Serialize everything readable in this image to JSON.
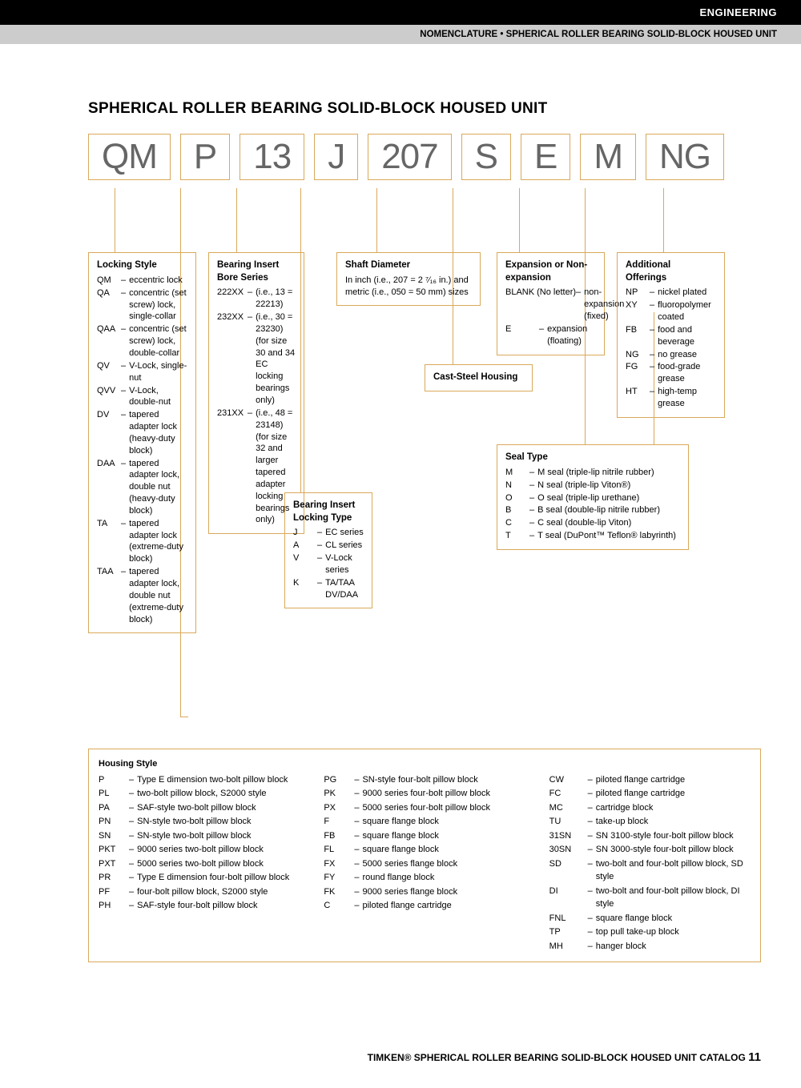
{
  "header": {
    "black_bar": "ENGINEERING",
    "gray_bar": "NOMENCLATURE • SPHERICAL ROLLER BEARING SOLID-BLOCK HOUSED UNIT"
  },
  "title": "SPHERICAL ROLLER BEARING SOLID-BLOCK HOUSED UNIT",
  "code_boxes": [
    "QM",
    "P",
    "13",
    "J",
    "207",
    "S",
    "E",
    "M",
    "NG"
  ],
  "locking_style": {
    "title": "Locking Style",
    "items": [
      {
        "c": "QM",
        "d": "eccentric lock"
      },
      {
        "c": "QA",
        "d": "concentric (set screw) lock, single-collar"
      },
      {
        "c": "QAA",
        "d": "concentric (set screw) lock, double-collar"
      },
      {
        "c": "QV",
        "d": "V-Lock, single-nut"
      },
      {
        "c": "QVV",
        "d": "V-Lock, double-nut"
      },
      {
        "c": "DV",
        "d": "tapered adapter lock (heavy-duty block)"
      },
      {
        "c": "DAA",
        "d": "tapered adapter lock, double nut (heavy-duty block)"
      },
      {
        "c": "TA",
        "d": "tapered adapter lock (extreme-duty block)"
      },
      {
        "c": "TAA",
        "d": "tapered adapter lock, double nut (extreme-duty block)"
      }
    ]
  },
  "bore_series": {
    "title1": "Bearing Insert",
    "title2": "Bore Series",
    "items": [
      {
        "c": "222XX",
        "d": "(i.e., 13 = 22213)"
      },
      {
        "c": "232XX",
        "d": "(i.e., 30 = 23230) (for size 30 and 34 EC locking bearings only)"
      },
      {
        "c": "231XX",
        "d": "(i.e., 48 = 23148) (for size 32 and larger tapered adapter locking bearings only)"
      }
    ]
  },
  "locking_type": {
    "title1": "Bearing Insert",
    "title2": "Locking Type",
    "items": [
      {
        "c": "J",
        "d": "EC series"
      },
      {
        "c": "A",
        "d": "CL series"
      },
      {
        "c": "V",
        "d": "V-Lock series"
      },
      {
        "c": "K",
        "d": "TA/TAA DV/DAA"
      }
    ]
  },
  "shaft_diameter": {
    "title": "Shaft Diameter",
    "text": "In inch (i.e., 207 = 2 ⁷⁄₁₆ in.) and metric (i.e., 050 = 50 mm) sizes"
  },
  "cast_steel": "Cast-Steel Housing",
  "expansion": {
    "title": "Expansion or Non-expansion",
    "items": [
      {
        "c": "BLANK (No letter)",
        "d": "non-expansion (fixed)"
      },
      {
        "c": "E",
        "d": "expansion (floating)"
      }
    ]
  },
  "seal_type": {
    "title": "Seal Type",
    "items": [
      {
        "c": "M",
        "d": "M seal (triple-lip nitrile rubber)"
      },
      {
        "c": "N",
        "d": "N seal (triple-lip Viton®)"
      },
      {
        "c": "O",
        "d": "O seal (triple-lip urethane)"
      },
      {
        "c": "B",
        "d": "B seal (double-lip nitrile rubber)"
      },
      {
        "c": "C",
        "d": "C seal (double-lip Viton)"
      },
      {
        "c": "T",
        "d": "T seal (DuPont™ Teflon® labyrinth)"
      }
    ]
  },
  "additional": {
    "title": "Additional Offerings",
    "items": [
      {
        "c": "NP",
        "d": "nickel plated"
      },
      {
        "c": "XY",
        "d": "fluoropolymer coated"
      },
      {
        "c": "FB",
        "d": "food and beverage"
      },
      {
        "c": "NG",
        "d": "no grease"
      },
      {
        "c": "FG",
        "d": "food-grade grease"
      },
      {
        "c": "HT",
        "d": "high-temp grease"
      }
    ]
  },
  "housing": {
    "title": "Housing Style",
    "col1": [
      {
        "c": "P",
        "d": "Type E dimension two-bolt pillow block"
      },
      {
        "c": "PL",
        "d": "two-bolt pillow block, S2000 style"
      },
      {
        "c": "PA",
        "d": "SAF-style two-bolt pillow block"
      },
      {
        "c": "PN",
        "d": "SN-style two-bolt pillow block"
      },
      {
        "c": "SN",
        "d": "SN-style two-bolt pillow block"
      },
      {
        "c": "PKT",
        "d": "9000 series two-bolt pillow block"
      },
      {
        "c": "PXT",
        "d": "5000 series two-bolt pillow block"
      },
      {
        "c": "PR",
        "d": "Type E dimension four-bolt pillow block"
      },
      {
        "c": "PF",
        "d": "four-bolt pillow block, S2000 style"
      },
      {
        "c": "PH",
        "d": "SAF-style four-bolt pillow block"
      }
    ],
    "col2": [
      {
        "c": "PG",
        "d": "SN-style four-bolt pillow block"
      },
      {
        "c": "PK",
        "d": "9000 series four-bolt pillow block"
      },
      {
        "c": "PX",
        "d": "5000 series four-bolt pillow block"
      },
      {
        "c": "F",
        "d": "square flange block"
      },
      {
        "c": "FB",
        "d": "square flange block"
      },
      {
        "c": "FL",
        "d": "square flange block"
      },
      {
        "c": "FX",
        "d": "5000 series flange block"
      },
      {
        "c": "FY",
        "d": "round flange block"
      },
      {
        "c": "FK",
        "d": "9000 series flange block"
      },
      {
        "c": "C",
        "d": "piloted flange cartridge"
      }
    ],
    "col3": [
      {
        "c": "CW",
        "d": "piloted flange cartridge"
      },
      {
        "c": "FC",
        "d": "piloted flange cartridge"
      },
      {
        "c": "MC",
        "d": "cartridge block"
      },
      {
        "c": "TU",
        "d": "take-up block"
      },
      {
        "c": "31SN",
        "d": "SN 3100-style four-bolt pillow block"
      },
      {
        "c": "30SN",
        "d": "SN 3000-style four-bolt pillow block"
      },
      {
        "c": "SD",
        "d": "two-bolt and four-bolt pillow block, SD style"
      },
      {
        "c": "DI",
        "d": "two-bolt and four-bolt pillow block, DI style"
      },
      {
        "c": "FNL",
        "d": "square flange block"
      },
      {
        "c": "TP",
        "d": "top pull take-up block"
      },
      {
        "c": "MH",
        "d": "hanger block"
      }
    ]
  },
  "footer": {
    "text": "TIMKEN® SPHERICAL ROLLER BEARING SOLID-BLOCK HOUSED UNIT CATALOG",
    "page": "11"
  }
}
